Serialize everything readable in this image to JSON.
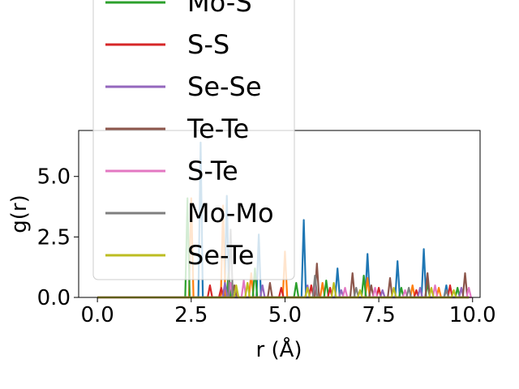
{
  "chart_data": {
    "type": "line",
    "xlabel": "r (Å)",
    "ylabel": "g(r)",
    "xlim": [
      -0.5,
      10.2
    ],
    "ylim": [
      0,
      6.9
    ],
    "xticks": [
      0.0,
      2.5,
      5.0,
      7.5,
      10.0
    ],
    "xtick_labels": [
      "0.0",
      "2.5",
      "5.0",
      "7.5",
      "10.0"
    ],
    "yticks": [
      0.0,
      2.5,
      5.0
    ],
    "ytick_labels": [
      "0.0",
      "2.5",
      "5.0"
    ],
    "grid": false,
    "legend_placement": "upper-left (overflowing top)",
    "series": [
      {
        "name": "",
        "color": "#1f77b4",
        "peaks": [
          [
            2.75,
            6.4
          ],
          [
            3.45,
            4.2
          ],
          [
            4.3,
            2.6
          ],
          [
            5.5,
            3.2
          ],
          [
            6.4,
            1.2
          ],
          [
            7.2,
            1.8
          ],
          [
            8.0,
            1.5
          ],
          [
            8.7,
            2.0
          ],
          [
            9.3,
            0.5
          ]
        ]
      },
      {
        "name": "",
        "color": "#ff7f0e",
        "peaks": [
          [
            2.5,
            4.1
          ],
          [
            3.35,
            3.8
          ],
          [
            4.1,
            1.0
          ],
          [
            5.0,
            1.9
          ],
          [
            6.0,
            0.6
          ],
          [
            7.2,
            0.8
          ],
          [
            8.4,
            0.5
          ],
          [
            9.1,
            0.4
          ]
        ]
      },
      {
        "name": "Mo-S",
        "color": "#2ca02c",
        "peaks": [
          [
            2.4,
            4.1
          ],
          [
            3.5,
            1.0
          ],
          [
            4.2,
            1.2
          ],
          [
            5.3,
            0.6
          ],
          [
            6.1,
            0.7
          ],
          [
            7.1,
            0.9
          ],
          [
            8.1,
            0.4
          ],
          [
            8.8,
            0.6
          ],
          [
            9.6,
            0.4
          ]
        ]
      },
      {
        "name": "S-S",
        "color": "#d62728",
        "peaks": [
          [
            3.0,
            0.5
          ],
          [
            3.3,
            0.4
          ],
          [
            4.9,
            0.4
          ],
          [
            5.7,
            0.5
          ],
          [
            6.2,
            0.4
          ],
          [
            7.5,
            0.4
          ],
          [
            8.5,
            0.3
          ],
          [
            9.4,
            0.5
          ]
        ]
      },
      {
        "name": "Se-Se",
        "color": "#9467bd",
        "peaks": [
          [
            3.4,
            0.6
          ],
          [
            4.4,
            0.5
          ],
          [
            5.6,
            0.5
          ],
          [
            6.5,
            0.3
          ],
          [
            7.6,
            0.3
          ],
          [
            8.6,
            0.4
          ],
          [
            9.7,
            0.4
          ]
        ]
      },
      {
        "name": "Te-Te",
        "color": "#8c564b",
        "peaks": [
          [
            3.65,
            0.5
          ],
          [
            4.6,
            0.6
          ],
          [
            5.85,
            1.4
          ],
          [
            6.8,
            1.0
          ],
          [
            7.3,
            0.5
          ],
          [
            7.8,
            0.8
          ],
          [
            8.8,
            1.0
          ],
          [
            9.8,
            1.0
          ]
        ]
      },
      {
        "name": "S-Te",
        "color": "#e377c2",
        "peaks": [
          [
            3.55,
            0.6
          ],
          [
            3.9,
            0.7
          ],
          [
            5.8,
            0.6
          ],
          [
            6.6,
            0.4
          ],
          [
            7.4,
            0.4
          ],
          [
            8.2,
            0.3
          ],
          [
            9.0,
            0.5
          ],
          [
            9.9,
            0.4
          ]
        ]
      },
      {
        "name": "Mo-Mo",
        "color": "#7f7f7f",
        "peaks": [
          [
            3.55,
            2.8
          ],
          [
            5.8,
            0.9
          ],
          [
            6.9,
            0.4
          ],
          [
            8.3,
            0.4
          ],
          [
            9.3,
            0.3
          ]
        ]
      },
      {
        "name": "Se-Te",
        "color": "#bcbd22",
        "peaks": [
          [
            3.7,
            0.5
          ],
          [
            4.0,
            0.6
          ],
          [
            5.6,
            0.4
          ],
          [
            6.3,
            0.6
          ],
          [
            7.0,
            0.3
          ],
          [
            7.9,
            0.4
          ],
          [
            8.9,
            0.4
          ],
          [
            9.5,
            0.3
          ]
        ]
      }
    ]
  }
}
